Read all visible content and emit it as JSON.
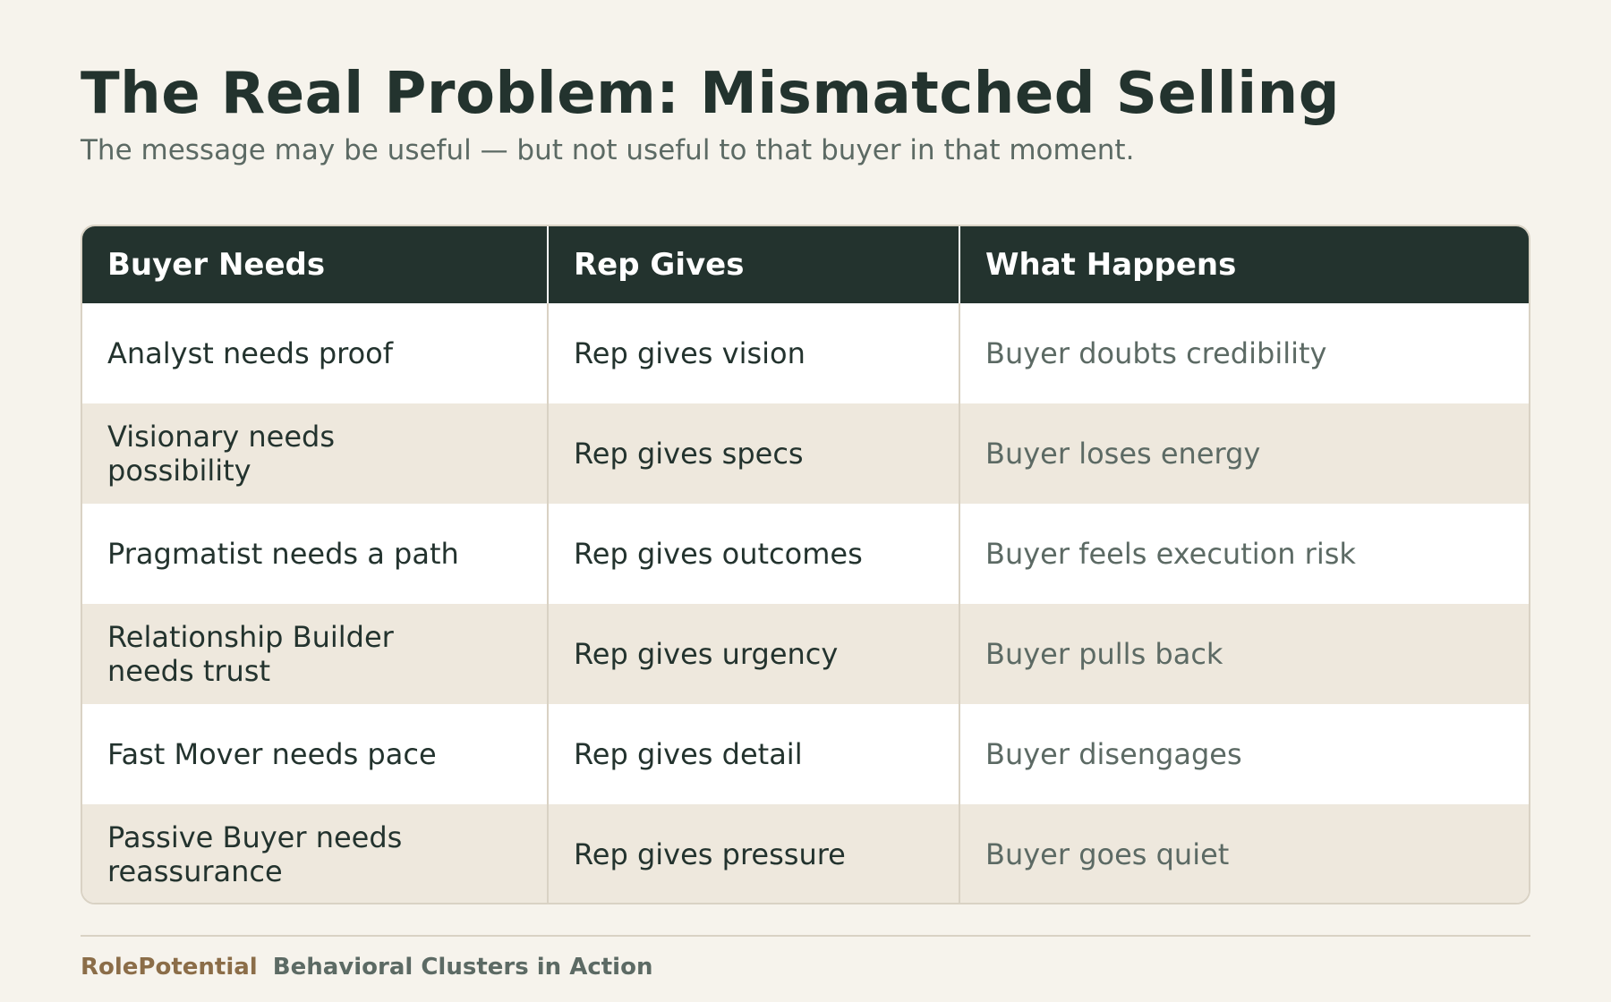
{
  "header": {
    "title": "The Real Problem: Mismatched Selling",
    "subtitle": "The message may be useful — but not useful to that buyer in that moment."
  },
  "table": {
    "columns": [
      "Buyer Needs",
      "Rep Gives",
      "What Happens"
    ],
    "rows": [
      [
        "Analyst needs proof",
        "Rep gives vision",
        "Buyer doubts credibility"
      ],
      [
        "Visionary needs possibility",
        "Rep gives specs",
        "Buyer loses energy"
      ],
      [
        "Pragmatist needs a path",
        "Rep gives outcomes",
        "Buyer feels execution risk"
      ],
      [
        "Relationship Builder needs trust",
        "Rep gives urgency",
        "Buyer pulls back"
      ],
      [
        "Fast Mover needs pace",
        "Rep gives detail",
        "Buyer disengages"
      ],
      [
        "Passive Buyer needs reassurance",
        "Rep gives pressure",
        "Buyer goes quiet"
      ]
    ]
  },
  "footer": {
    "brand": "RolePotential",
    "tagline": "Behavioral Clusters in Action"
  },
  "colors": {
    "background": "#f6f3ec",
    "header_dark": "#23332e",
    "brand_accent": "#8b6d48",
    "muted_text": "#5c6a64",
    "alt_row": "#eee8dd"
  }
}
